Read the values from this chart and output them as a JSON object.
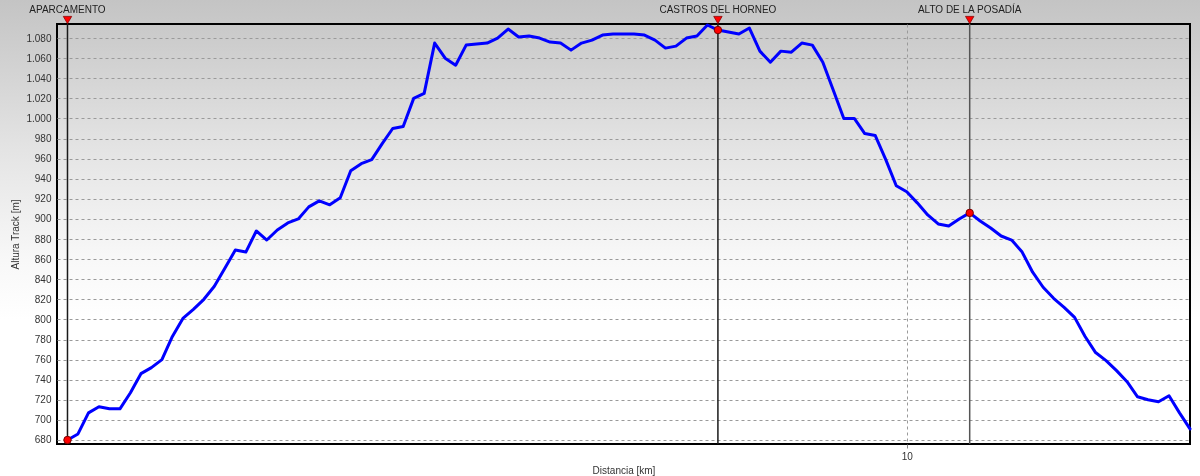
{
  "chart_data": {
    "type": "line",
    "xlabel": "Distancia [km]",
    "ylabel": "Altura Track [m]",
    "categories": [
      "APARCAMENTO",
      null,
      null,
      null,
      null,
      null,
      null,
      null,
      null,
      null,
      null,
      null,
      null,
      null,
      null,
      null,
      null,
      null,
      null,
      null,
      null,
      null,
      null,
      null,
      null,
      null,
      null,
      null,
      null,
      null,
      null,
      null,
      null,
      null,
      null,
      null,
      null,
      null,
      null,
      null,
      null,
      null,
      null,
      null,
      null,
      null,
      null,
      null,
      null,
      null,
      null,
      null,
      null,
      null,
      null,
      null,
      null,
      null,
      null,
      null,
      null,
      null,
      "CASTROS DEL HORNEO",
      null,
      null,
      null,
      null,
      null,
      null,
      null,
      null,
      null,
      null,
      null,
      null,
      null,
      null,
      null,
      null,
      null,
      "10",
      null,
      null,
      null,
      null,
      null,
      "ALTO DE LA POSADÍA",
      null,
      null,
      null,
      null,
      null,
      null,
      null,
      null,
      null,
      null,
      null,
      null,
      null,
      null,
      null,
      null,
      null,
      null,
      null,
      null,
      null
    ],
    "ylim": [
      676,
      1094
    ],
    "yticks": [
      680,
      700,
      720,
      740,
      760,
      780,
      800,
      820,
      840,
      860,
      880,
      900,
      920,
      940,
      960,
      980,
      {
        "value": 1000,
        "label": "1.000"
      },
      {
        "value": 1020,
        "label": "1.020"
      },
      {
        "value": 1040,
        "label": "1.040"
      },
      {
        "value": 1060,
        "label": "1.060"
      },
      {
        "value": 1080,
        "label": "1.080"
      }
    ],
    "grid": true,
    "series": [
      {
        "color": "#0000ff",
        "values": [
          680,
          686,
          707,
          713,
          711,
          711,
          727,
          746,
          752,
          760,
          783,
          801,
          810,
          820,
          833,
          851,
          869,
          867,
          888,
          879,
          889,
          896,
          900,
          912,
          918,
          914,
          921,
          948,
          955,
          959,
          975,
          990,
          992,
          1020,
          1025,
          1075,
          1060,
          1053,
          1073,
          1074,
          1075,
          1080,
          1089,
          1081,
          1082,
          1080,
          1076,
          1075,
          1068,
          1075,
          1078,
          1083,
          1084,
          1084,
          1084,
          1083,
          1078,
          1070,
          1072,
          1080,
          1082,
          1093,
          1088,
          1086,
          1084,
          1090,
          1067,
          1056,
          1067,
          1066,
          1075,
          1073,
          1056,
          1028,
          1000,
          1000,
          985,
          983,
          959,
          933,
          927,
          916,
          904,
          895,
          893,
          900,
          906,
          898,
          891,
          883,
          879,
          867,
          847,
          832,
          821,
          812,
          802,
          783,
          767,
          759,
          749,
          738,
          723,
          720,
          718,
          724,
          707,
          691
        ]
      }
    ],
    "ref_lines": [
      {
        "axis": "x",
        "value": "APARCAMENTO",
        "color": "#1a1a1a"
      },
      {
        "axis": "x",
        "value": "CASTROS DEL HORNEO",
        "color": "#1a1a1a"
      },
      {
        "axis": "x",
        "value": "ALTO DE LA POSADÍA",
        "color": "#555555"
      }
    ]
  }
}
